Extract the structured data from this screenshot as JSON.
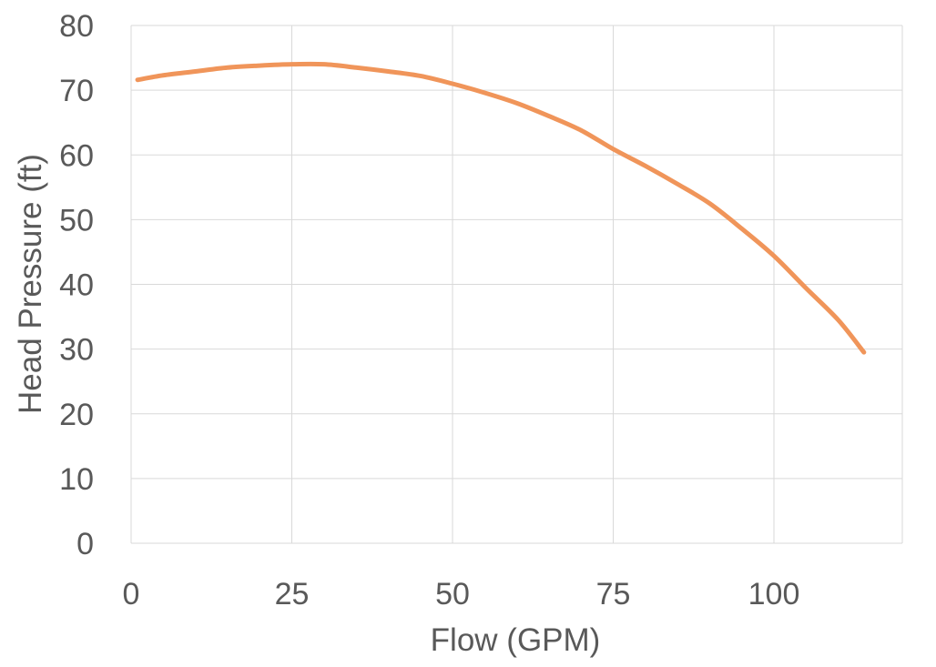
{
  "chart_data": {
    "type": "line",
    "xlabel": "Flow (GPM)",
    "ylabel": "Head Pressure (ft)",
    "xlim": [
      0,
      120
    ],
    "ylim": [
      0,
      80
    ],
    "x_ticks": [
      0,
      25,
      50,
      75,
      100
    ],
    "y_ticks": [
      0,
      10,
      20,
      30,
      40,
      50,
      60,
      70,
      80
    ],
    "grid": true,
    "legend": "none",
    "series": [
      {
        "color": "#F0955A",
        "x": [
          1,
          5,
          10,
          15,
          20,
          25,
          30,
          35,
          40,
          45,
          50,
          55,
          60,
          65,
          70,
          75,
          80,
          85,
          90,
          95,
          100,
          105,
          110,
          114
        ],
        "y": [
          71.6,
          72.3,
          72.9,
          73.5,
          73.8,
          74.0,
          74.0,
          73.5,
          72.9,
          72.2,
          71.0,
          69.6,
          68.0,
          66.0,
          63.8,
          60.9,
          58.3,
          55.5,
          52.5,
          48.6,
          44.4,
          39.4,
          34.5,
          29.5
        ]
      }
    ]
  }
}
